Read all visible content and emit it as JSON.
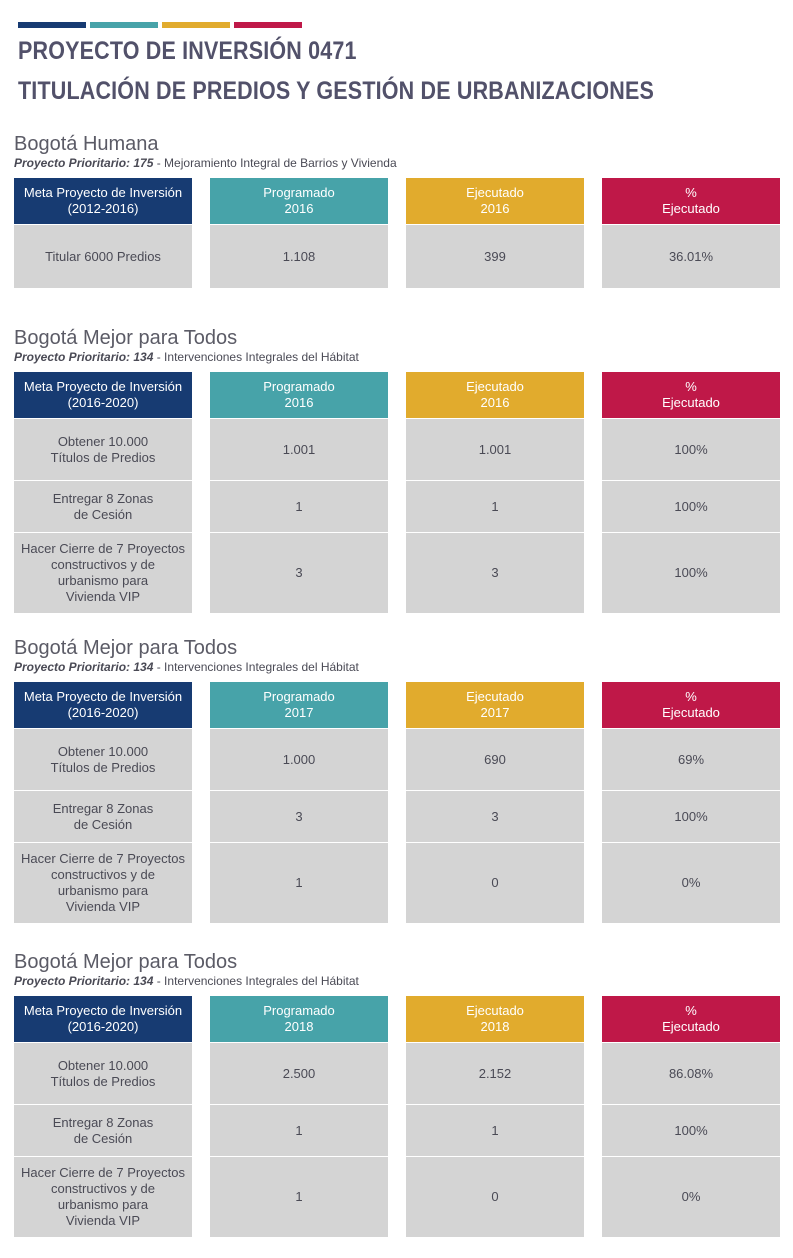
{
  "colors": {
    "navy": "#173b72",
    "teal": "#47a3a9",
    "gold": "#e1ab2d",
    "crimson": "#bf1848"
  },
  "header": {
    "title_line1": "PROYECTO DE INVERSIÓN 0471",
    "title_line2": "TITULACIÓN DE PREDIOS Y GESTIÓN DE URBANIZACIONES"
  },
  "sections": [
    {
      "title": "Bogotá Humana",
      "subtitle_bold": "Proyecto Prioritario: 175",
      "subtitle_rest": " - Mejoramiento Integral de Barrios y Vivienda",
      "headers": [
        "Meta Proyecto de Inversión\n(2012-2016)",
        "Programado\n2016",
        "Ejecutado\n2016",
        "%\nEjecutado"
      ],
      "rows": [
        [
          "Titular 6000 Predios",
          "1.108",
          "399",
          "36.01%"
        ]
      ]
    },
    {
      "title": "Bogotá Mejor para Todos",
      "subtitle_bold": "Proyecto Prioritario: 134",
      "subtitle_rest": " - Intervenciones Integrales del Hábitat",
      "headers": [
        "Meta Proyecto de Inversión\n(2016-2020)",
        "Programado\n2016",
        "Ejecutado\n2016",
        "%\nEjecutado"
      ],
      "rows": [
        [
          "Obtener 10.000\nTítulos de Predios",
          "1.001",
          "1.001",
          "100%"
        ],
        [
          "Entregar 8 Zonas\nde Cesión",
          "1",
          "1",
          "100%"
        ],
        [
          "Hacer Cierre de 7 Proyectos\nconstructivos  y de\nurbanismo para\nVivienda VIP",
          "3",
          "3",
          "100%"
        ]
      ]
    },
    {
      "title": "Bogotá Mejor para Todos",
      "subtitle_bold": "Proyecto Prioritario: 134",
      "subtitle_rest": " - Intervenciones Integrales del Hábitat",
      "headers": [
        "Meta Proyecto de Inversión\n(2016-2020)",
        "Programado\n2017",
        "Ejecutado\n2017",
        "%\nEjecutado"
      ],
      "rows": [
        [
          "Obtener 10.000\nTítulos de Predios",
          "1.000",
          "690",
          "69%"
        ],
        [
          "Entregar 8 Zonas\nde Cesión",
          "3",
          "3",
          "100%"
        ],
        [
          "Hacer Cierre de 7 Proyectos\nconstructivos  y de\nurbanismo para\nVivienda VIP",
          "1",
          "0",
          "0%"
        ]
      ]
    },
    {
      "title": "Bogotá Mejor para Todos",
      "subtitle_bold": "Proyecto Prioritario: 134",
      "subtitle_rest": " - Intervenciones Integrales del Hábitat",
      "headers": [
        "Meta Proyecto de Inversión\n(2016-2020)",
        "Programado\n2018",
        "Ejecutado\n2018",
        "%\nEjecutado"
      ],
      "rows": [
        [
          "Obtener 10.000\nTítulos de Predios",
          "2.500",
          "2.152",
          "86.08%"
        ],
        [
          "Entregar 8 Zonas\nde Cesión",
          "1",
          "1",
          "100%"
        ],
        [
          "Hacer Cierre de 7 Proyectos\nconstructivos  y de\nurbanismo para\nVivienda VIP",
          "1",
          "0",
          "0%"
        ]
      ]
    }
  ]
}
